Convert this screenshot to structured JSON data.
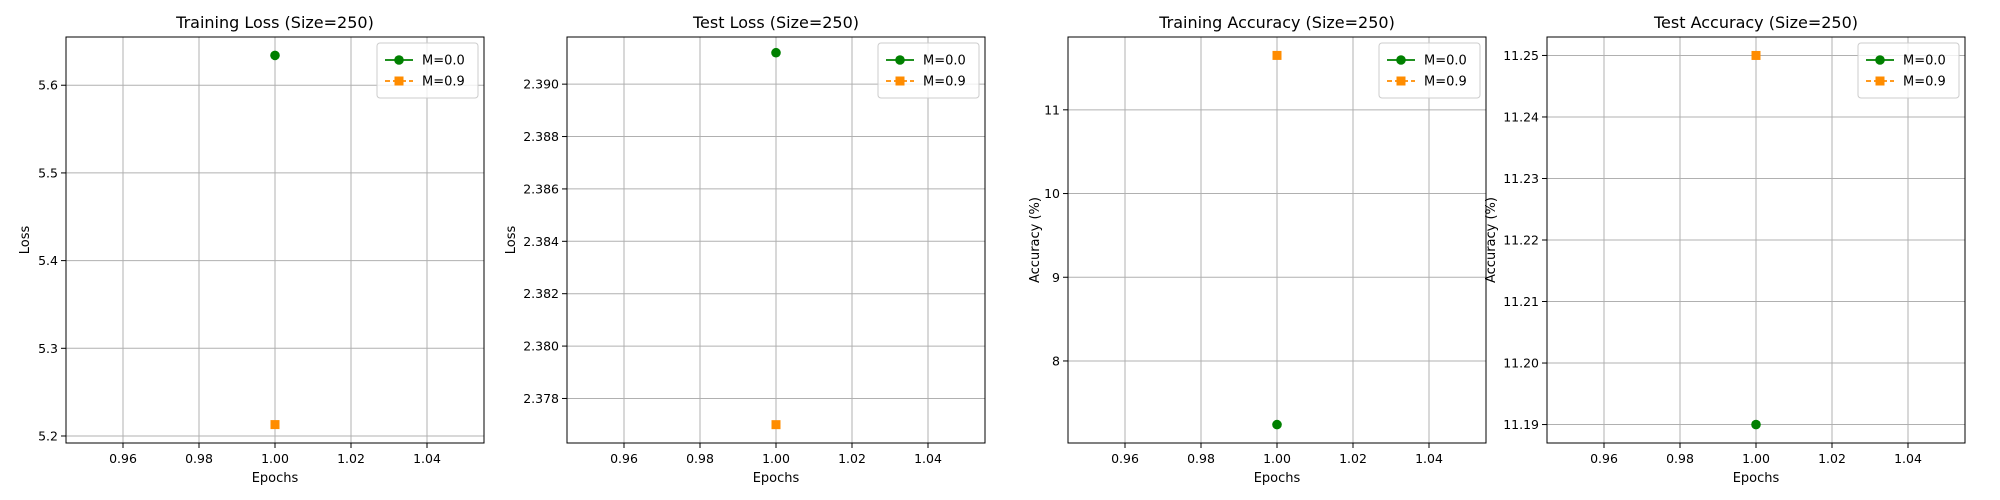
{
  "chart_data": [
    {
      "type": "line",
      "title": "Training Loss (Size=250)",
      "xlabel": "Epochs",
      "ylabel": "Loss",
      "xlim": [
        0.945,
        1.055
      ],
      "ylim": [
        5.192,
        5.655
      ],
      "x_ticks": [
        "0.96",
        "0.98",
        "1.00",
        "1.02",
        "1.04"
      ],
      "y_ticks": [
        "5.2",
        "5.3",
        "5.4",
        "5.5",
        "5.6"
      ],
      "grid": true,
      "legend": "top-right",
      "series": [
        {
          "name": "M=0.0",
          "color": "#008000",
          "marker": "circle",
          "line": "solid",
          "x": [
            1.0
          ],
          "y": [
            5.634
          ]
        },
        {
          "name": "M=0.9",
          "color": "#ff8c00",
          "marker": "square",
          "line": "dashed",
          "x": [
            1.0
          ],
          "y": [
            5.213
          ]
        }
      ]
    },
    {
      "type": "line",
      "title": "Test Loss (Size=250)",
      "xlabel": "Epochs",
      "ylabel": "Loss",
      "xlim": [
        0.945,
        1.055
      ],
      "ylim": [
        2.3763,
        2.3918
      ],
      "x_ticks": [
        "0.96",
        "0.98",
        "1.00",
        "1.02",
        "1.04"
      ],
      "y_ticks": [
        "2.378",
        "2.380",
        "2.382",
        "2.384",
        "2.386",
        "2.388",
        "2.390"
      ],
      "grid": true,
      "legend": "top-right",
      "series": [
        {
          "name": "M=0.0",
          "color": "#008000",
          "marker": "circle",
          "line": "solid",
          "x": [
            1.0
          ],
          "y": [
            2.3912
          ]
        },
        {
          "name": "M=0.9",
          "color": "#ff8c00",
          "marker": "square",
          "line": "dashed",
          "x": [
            1.0
          ],
          "y": [
            2.377
          ]
        }
      ]
    },
    {
      "type": "line",
      "title": "Training Accuracy (Size=250)",
      "xlabel": "Epochs",
      "ylabel": "Accuracy (%)",
      "xlim": [
        0.945,
        1.055
      ],
      "ylim": [
        7.02,
        11.87
      ],
      "x_ticks": [
        "0.96",
        "0.98",
        "1.00",
        "1.02",
        "1.04"
      ],
      "y_ticks": [
        "8",
        "9",
        "10",
        "11"
      ],
      "grid": true,
      "legend": "top-right",
      "series": [
        {
          "name": "M=0.0",
          "color": "#008000",
          "marker": "circle",
          "line": "solid",
          "x": [
            1.0
          ],
          "y": [
            7.24
          ]
        },
        {
          "name": "M=0.9",
          "color": "#ff8c00",
          "marker": "square",
          "line": "dashed",
          "x": [
            1.0
          ],
          "y": [
            11.65
          ]
        }
      ]
    },
    {
      "type": "line",
      "title": "Test Accuracy (Size=250)",
      "xlabel": "Epochs",
      "ylabel": "Accuracy (%)",
      "xlim": [
        0.945,
        1.055
      ],
      "ylim": [
        11.187,
        11.253
      ],
      "x_ticks": [
        "0.96",
        "0.98",
        "1.00",
        "1.02",
        "1.04"
      ],
      "y_ticks": [
        "11.19",
        "11.20",
        "11.21",
        "11.22",
        "11.23",
        "11.24",
        "11.25"
      ],
      "grid": true,
      "legend": "top-right",
      "series": [
        {
          "name": "M=0.0",
          "color": "#008000",
          "marker": "circle",
          "line": "solid",
          "x": [
            1.0
          ],
          "y": [
            11.19
          ]
        },
        {
          "name": "M=0.9",
          "color": "#ff8c00",
          "marker": "square",
          "line": "dashed",
          "x": [
            1.0
          ],
          "y": [
            11.25
          ]
        }
      ]
    }
  ]
}
